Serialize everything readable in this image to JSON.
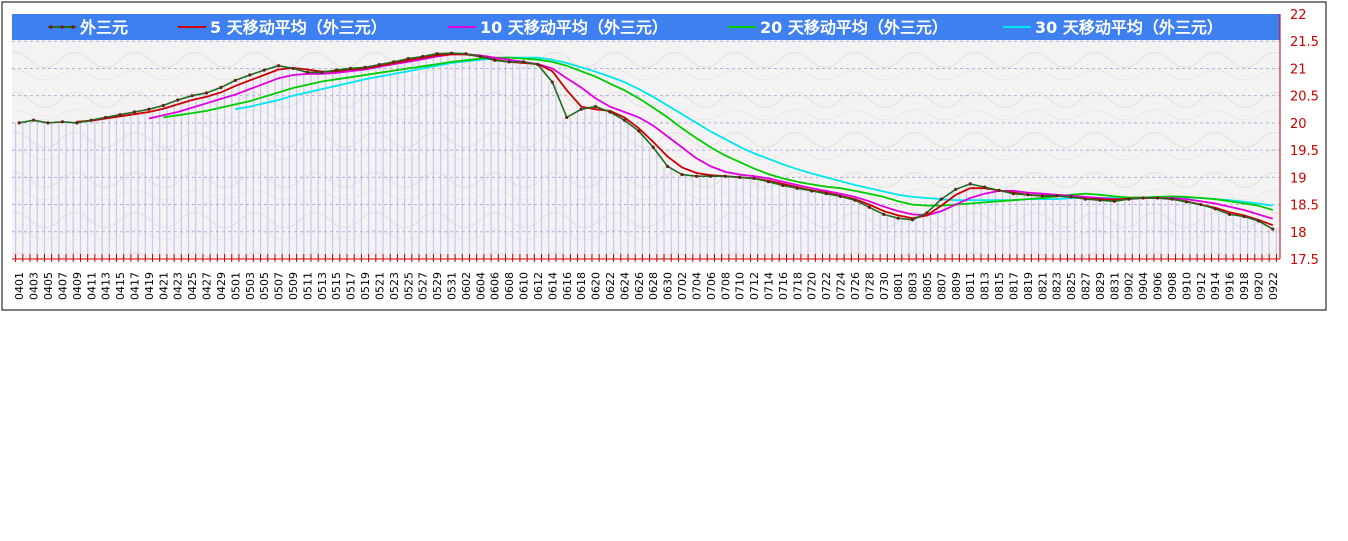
{
  "chart_data": {
    "type": "line",
    "x": [
      "0401",
      "0403",
      "0405",
      "0407",
      "0409",
      "0411",
      "0413",
      "0415",
      "0417",
      "0419",
      "0421",
      "0423",
      "0425",
      "0427",
      "0429",
      "0501",
      "0503",
      "0505",
      "0507",
      "0509",
      "0511",
      "0513",
      "0515",
      "0517",
      "0519",
      "0521",
      "0523",
      "0525",
      "0527",
      "0529",
      "0531",
      "0602",
      "0604",
      "0606",
      "0608",
      "0610",
      "0612",
      "0614",
      "0616",
      "0618",
      "0620",
      "0622",
      "0624",
      "0626",
      "0628",
      "0630",
      "0702",
      "0704",
      "0706",
      "0708",
      "0710",
      "0712",
      "0714",
      "0716",
      "0718",
      "0720",
      "0722",
      "0724",
      "0726",
      "0728",
      "0730",
      "0801",
      "0803",
      "0805",
      "0807",
      "0809",
      "0811",
      "0813",
      "0815",
      "0817",
      "0819",
      "0821",
      "0823",
      "0825",
      "0827",
      "0829",
      "0831",
      "0902",
      "0904",
      "0906",
      "0908",
      "0910",
      "0912",
      "0914",
      "0916",
      "0918",
      "0920",
      "0922"
    ],
    "ylim": [
      17.5,
      22
    ],
    "yticks": [
      "17.5",
      "18",
      "18.5",
      "19",
      "19.5",
      "20",
      "20.5",
      "21",
      "21.5",
      "22"
    ],
    "grid": true,
    "legend": "top",
    "series": [
      {
        "name": "外三元",
        "color": "#1e6b1e",
        "values": [
          20.0,
          20.05,
          20.0,
          20.02,
          20.0,
          20.05,
          20.1,
          20.15,
          20.2,
          20.25,
          20.32,
          20.42,
          20.5,
          20.55,
          20.65,
          20.78,
          20.88,
          20.97,
          21.05,
          21.0,
          20.93,
          20.93,
          20.97,
          21.0,
          21.02,
          21.07,
          21.12,
          21.18,
          21.22,
          21.27,
          21.28,
          21.27,
          21.22,
          21.15,
          21.12,
          21.12,
          21.07,
          20.75,
          20.1,
          20.25,
          20.3,
          20.2,
          20.05,
          19.85,
          19.55,
          19.2,
          19.05,
          19.02,
          19.02,
          19.02,
          19.0,
          18.98,
          18.92,
          18.85,
          18.8,
          18.75,
          18.7,
          18.65,
          18.58,
          18.45,
          18.32,
          18.25,
          18.22,
          18.35,
          18.6,
          18.78,
          18.88,
          18.82,
          18.76,
          18.7,
          18.68,
          18.66,
          18.66,
          18.64,
          18.6,
          18.58,
          18.56,
          18.6,
          18.62,
          18.62,
          18.6,
          18.55,
          18.5,
          18.42,
          18.32,
          18.28,
          18.2,
          18.05
        ]
      },
      {
        "name": "5 天移动平均（外三元）",
        "color": "#cc0000",
        "values": [
          null,
          null,
          null,
          null,
          20.02,
          20.04,
          20.08,
          20.12,
          20.16,
          20.2,
          20.26,
          20.34,
          20.42,
          20.48,
          20.56,
          20.68,
          20.78,
          20.88,
          20.98,
          21.01,
          20.98,
          20.94,
          20.95,
          20.98,
          21.0,
          21.05,
          21.1,
          21.15,
          21.2,
          21.24,
          21.26,
          21.26,
          21.22,
          21.16,
          21.12,
          21.1,
          21.08,
          20.95,
          20.6,
          20.3,
          20.25,
          20.22,
          20.1,
          19.9,
          19.65,
          19.38,
          19.18,
          19.08,
          19.04,
          19.02,
          19.0,
          18.98,
          18.94,
          18.88,
          18.82,
          18.76,
          18.72,
          18.66,
          18.6,
          18.5,
          18.38,
          18.3,
          18.25,
          18.3,
          18.48,
          18.68,
          18.8,
          18.8,
          18.76,
          18.72,
          18.68,
          18.66,
          18.66,
          18.64,
          18.61,
          18.6,
          18.59,
          18.61,
          18.62,
          18.62,
          18.6,
          18.56,
          18.5,
          18.44,
          18.36,
          18.3,
          18.22,
          18.12
        ]
      },
      {
        "name": "10 天移动平均（外三元）",
        "color": "#e000e0",
        "values": [
          null,
          null,
          null,
          null,
          null,
          null,
          null,
          null,
          null,
          20.08,
          20.14,
          20.2,
          20.28,
          20.36,
          20.44,
          20.52,
          20.62,
          20.72,
          20.82,
          20.88,
          20.9,
          20.9,
          20.92,
          20.95,
          20.98,
          21.03,
          21.08,
          21.12,
          21.17,
          21.22,
          21.26,
          21.26,
          21.24,
          21.2,
          21.16,
          21.12,
          21.08,
          21.0,
          20.82,
          20.65,
          20.45,
          20.3,
          20.2,
          20.1,
          19.95,
          19.75,
          19.55,
          19.35,
          19.2,
          19.1,
          19.05,
          19.02,
          18.98,
          18.92,
          18.86,
          18.8,
          18.75,
          18.7,
          18.64,
          18.56,
          18.46,
          18.38,
          18.32,
          18.3,
          18.38,
          18.5,
          18.62,
          18.7,
          18.75,
          18.75,
          18.72,
          18.7,
          18.68,
          18.66,
          18.64,
          18.62,
          18.6,
          18.6,
          18.62,
          18.62,
          18.62,
          18.6,
          18.56,
          18.52,
          18.46,
          18.4,
          18.32,
          18.24
        ]
      },
      {
        "name": "20 天移动平均（外三元）",
        "color": "#00cc00",
        "values": [
          null,
          null,
          null,
          null,
          null,
          null,
          null,
          null,
          null,
          null,
          20.1,
          20.14,
          20.18,
          20.22,
          20.28,
          20.34,
          20.4,
          20.48,
          20.56,
          20.64,
          20.7,
          20.76,
          20.8,
          20.84,
          20.88,
          20.92,
          20.96,
          21.0,
          21.04,
          21.08,
          21.12,
          21.15,
          21.18,
          21.2,
          21.2,
          21.18,
          21.16,
          21.12,
          21.05,
          20.95,
          20.85,
          20.72,
          20.6,
          20.45,
          20.28,
          20.1,
          19.9,
          19.72,
          19.55,
          19.4,
          19.28,
          19.16,
          19.06,
          18.98,
          18.92,
          18.87,
          18.83,
          18.8,
          18.75,
          18.7,
          18.64,
          18.56,
          18.5,
          18.48,
          18.48,
          18.5,
          18.52,
          18.54,
          18.56,
          18.58,
          18.6,
          18.62,
          18.65,
          18.68,
          18.7,
          18.68,
          18.65,
          18.63,
          18.63,
          18.64,
          18.65,
          18.64,
          18.62,
          18.6,
          18.56,
          18.52,
          18.48,
          18.4
        ]
      },
      {
        "name": "30 天移动平均（外三元）",
        "color": "#00e5ee",
        "values": [
          null,
          null,
          null,
          null,
          null,
          null,
          null,
          null,
          null,
          null,
          null,
          null,
          null,
          null,
          null,
          20.25,
          20.3,
          20.36,
          20.42,
          20.5,
          20.56,
          20.62,
          20.68,
          20.74,
          20.8,
          20.85,
          20.9,
          20.95,
          21.0,
          21.05,
          21.1,
          21.13,
          21.16,
          21.18,
          21.2,
          21.2,
          21.2,
          21.16,
          21.1,
          21.02,
          20.94,
          20.85,
          20.75,
          20.62,
          20.48,
          20.32,
          20.16,
          20.0,
          19.84,
          19.7,
          19.56,
          19.44,
          19.34,
          19.24,
          19.15,
          19.07,
          19.0,
          18.93,
          18.86,
          18.8,
          18.74,
          18.68,
          18.64,
          18.62,
          18.6,
          18.58,
          18.58,
          18.58,
          18.58,
          18.58,
          18.6,
          18.6,
          18.6,
          18.62,
          18.62,
          18.62,
          18.62,
          18.62,
          18.63,
          18.64,
          18.64,
          18.63,
          18.62,
          18.6,
          18.58,
          18.55,
          18.52,
          18.48
        ]
      }
    ]
  }
}
